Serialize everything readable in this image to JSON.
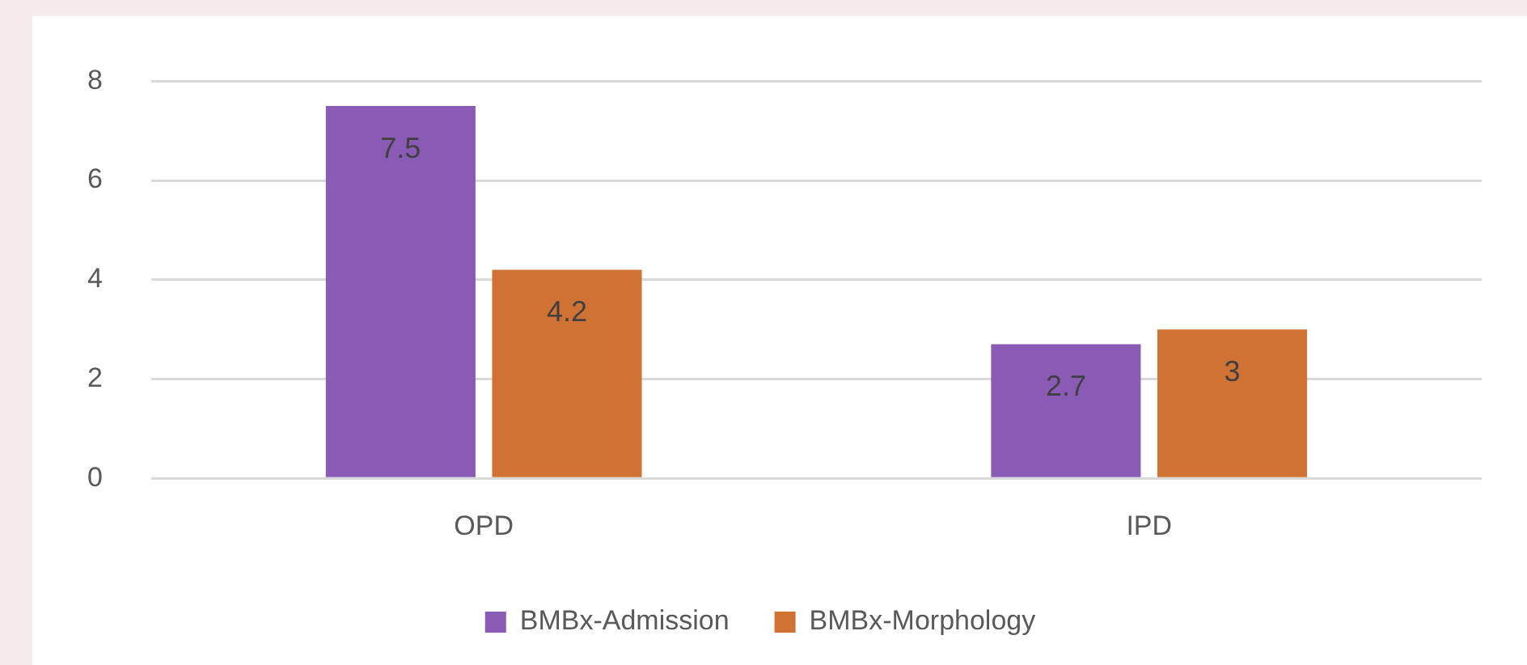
{
  "chart_data": {
    "type": "bar",
    "categories": [
      "OPD",
      "IPD"
    ],
    "series": [
      {
        "name": "BMBx-Admission",
        "color": "#8a5bb5",
        "values": [
          7.5,
          2.7
        ]
      },
      {
        "name": "BMBx-Morphology",
        "color": "#d07233",
        "values": [
          4.2,
          3
        ]
      }
    ],
    "ylim": [
      0,
      8
    ],
    "yticks": [
      0,
      2,
      4,
      6,
      8
    ],
    "grid": "y",
    "legend": "bottom",
    "data_labels": true
  }
}
